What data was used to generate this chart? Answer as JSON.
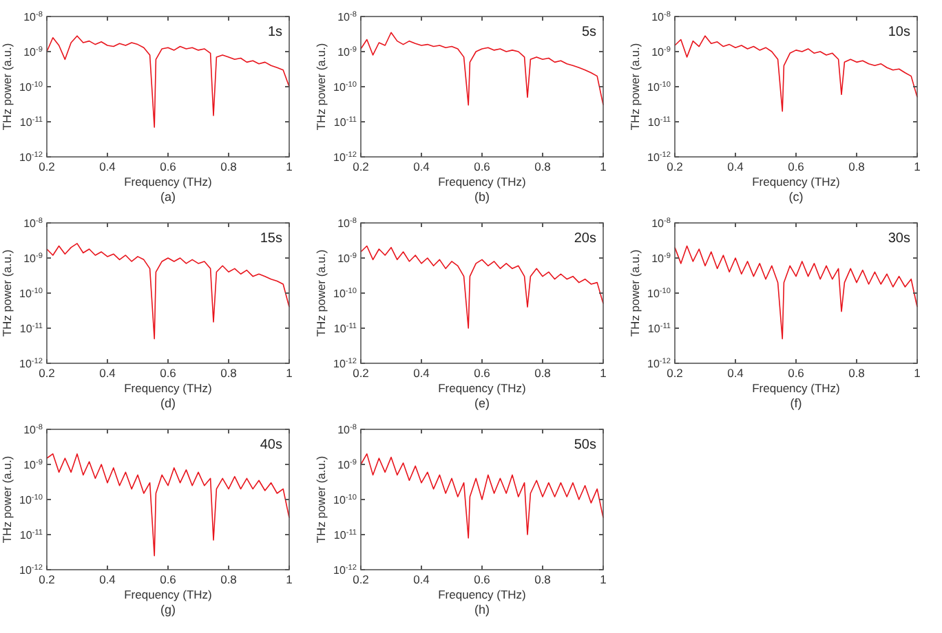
{
  "chart_data": [
    {
      "type": "line",
      "title": "(a)",
      "annotations": [
        "1s"
      ],
      "xlabel": "Frequency (THz)",
      "ylabel": "THz power (a.u.)",
      "log": "y",
      "xlim": [
        0.2,
        1
      ],
      "xticks": [
        0.2,
        0.4,
        0.6,
        0.8,
        1
      ],
      "ylim": [
        1e-12,
        1e-08
      ],
      "yticks": [
        {
          "value": 1e-12,
          "label": "10$^{-12}$"
        },
        {
          "value": 1e-11,
          "label": "10$^{-11}$"
        },
        {
          "value": 1e-10,
          "label": "10$^{-10}$"
        },
        {
          "value": 1e-09,
          "label": "10$^{-9}$"
        },
        {
          "value": 1e-08,
          "label": "10$^{-8}$"
        }
      ],
      "x": [
        0.2,
        0.22,
        0.24,
        0.26,
        0.28,
        0.3,
        0.32,
        0.34,
        0.36,
        0.38,
        0.4,
        0.42,
        0.44,
        0.46,
        0.48,
        0.5,
        0.52,
        0.54,
        0.555,
        0.56,
        0.58,
        0.6,
        0.62,
        0.64,
        0.66,
        0.68,
        0.7,
        0.72,
        0.74,
        0.75,
        0.76,
        0.78,
        0.8,
        0.82,
        0.84,
        0.86,
        0.88,
        0.9,
        0.92,
        0.94,
        0.96,
        0.98,
        1
      ],
      "series": [
        {
          "color": "#e8141c",
          "values": [
            1e-09,
            2.5e-09,
            1.5e-09,
            6e-10,
            1.8e-09,
            2.8e-09,
            1.8e-09,
            2e-09,
            1.6e-09,
            1.9e-09,
            1.5e-09,
            1.4e-09,
            1.7e-09,
            1.5e-09,
            1.8e-09,
            1.6e-09,
            1.3e-09,
            8e-10,
            7e-12,
            6e-10,
            1.2e-09,
            1.3e-09,
            1.1e-09,
            1.4e-09,
            1.2e-09,
            1.3e-09,
            1.1e-09,
            1.2e-09,
            9e-10,
            1.5e-11,
            7e-10,
            8e-10,
            7e-10,
            6e-10,
            6.5e-10,
            5e-10,
            5.5e-10,
            4.5e-10,
            5e-10,
            4e-10,
            3.5e-10,
            3e-10,
            1e-10
          ]
        }
      ]
    },
    {
      "type": "line",
      "title": "(b)",
      "annotations": [
        "5s"
      ],
      "xlabel": "Frequency (THz)",
      "ylabel": "THz power (a.u.)",
      "log": "y",
      "xlim": [
        0.2,
        1
      ],
      "xticks": [
        0.2,
        0.4,
        0.6,
        0.8,
        1
      ],
      "ylim": [
        1e-12,
        1e-08
      ],
      "yticks": [
        {
          "value": 1e-12,
          "label": "10$^{-12}$"
        },
        {
          "value": 1e-11,
          "label": "10$^{-11}$"
        },
        {
          "value": 1e-10,
          "label": "10$^{-10}$"
        },
        {
          "value": 1e-09,
          "label": "10$^{-9}$"
        },
        {
          "value": 1e-08,
          "label": "10$^{-8}$"
        }
      ],
      "x": [
        0.2,
        0.22,
        0.24,
        0.26,
        0.28,
        0.3,
        0.32,
        0.34,
        0.36,
        0.38,
        0.4,
        0.42,
        0.44,
        0.46,
        0.48,
        0.5,
        0.52,
        0.54,
        0.555,
        0.56,
        0.58,
        0.6,
        0.62,
        0.64,
        0.66,
        0.68,
        0.7,
        0.72,
        0.74,
        0.75,
        0.76,
        0.78,
        0.8,
        0.82,
        0.84,
        0.86,
        0.88,
        0.9,
        0.92,
        0.94,
        0.96,
        0.98,
        1
      ],
      "series": [
        {
          "color": "#e8141c",
          "values": [
            1.2e-09,
            2.2e-09,
            8e-10,
            1.8e-09,
            1.5e-09,
            3.5e-09,
            2e-09,
            1.6e-09,
            2e-09,
            1.7e-09,
            1.5e-09,
            1.6e-09,
            1.4e-09,
            1.5e-09,
            1.3e-09,
            1.4e-09,
            1.2e-09,
            7e-10,
            3e-11,
            5e-10,
            1e-09,
            1.2e-09,
            1.3e-09,
            1.1e-09,
            1.2e-09,
            1e-09,
            1.1e-09,
            1e-09,
            7e-10,
            5e-11,
            6e-10,
            7e-10,
            6e-10,
            6.5e-10,
            5e-10,
            5.5e-10,
            4.5e-10,
            4e-10,
            3.5e-10,
            3e-10,
            2.5e-10,
            2e-10,
            3e-11
          ]
        }
      ]
    },
    {
      "type": "line",
      "title": "(c)",
      "annotations": [
        "10s"
      ],
      "xlabel": "Frequency (THz)",
      "ylabel": "THz power (a.u.)",
      "log": "y",
      "xlim": [
        0.2,
        1
      ],
      "xticks": [
        0.2,
        0.4,
        0.6,
        0.8,
        1
      ],
      "ylim": [
        1e-12,
        1e-08
      ],
      "yticks": [
        {
          "value": 1e-12,
          "label": "10$^{-12}$"
        },
        {
          "value": 1e-11,
          "label": "10$^{-11}$"
        },
        {
          "value": 1e-10,
          "label": "10$^{-10}$"
        },
        {
          "value": 1e-09,
          "label": "10$^{-9}$"
        },
        {
          "value": 1e-08,
          "label": "10$^{-8}$"
        }
      ],
      "x": [
        0.2,
        0.22,
        0.24,
        0.26,
        0.28,
        0.3,
        0.32,
        0.34,
        0.36,
        0.38,
        0.4,
        0.42,
        0.44,
        0.46,
        0.48,
        0.5,
        0.52,
        0.54,
        0.555,
        0.56,
        0.58,
        0.6,
        0.62,
        0.64,
        0.66,
        0.68,
        0.7,
        0.72,
        0.74,
        0.75,
        0.76,
        0.78,
        0.8,
        0.82,
        0.84,
        0.86,
        0.88,
        0.9,
        0.92,
        0.94,
        0.96,
        0.98,
        1
      ],
      "series": [
        {
          "color": "#e8141c",
          "values": [
            1.5e-09,
            2.2e-09,
            7e-10,
            2e-09,
            1.4e-09,
            2.8e-09,
            1.7e-09,
            1.9e-09,
            1.4e-09,
            1.6e-09,
            1.3e-09,
            1.5e-09,
            1.2e-09,
            1.4e-09,
            1.1e-09,
            1.3e-09,
            1e-09,
            6e-10,
            2e-11,
            4e-10,
            9e-10,
            1.1e-09,
            1e-09,
            1.2e-09,
            9e-10,
            1e-09,
            8e-10,
            9e-10,
            6e-10,
            6e-11,
            5e-10,
            6e-10,
            5e-10,
            5.5e-10,
            4.5e-10,
            4e-10,
            4.5e-10,
            3.5e-10,
            3e-10,
            3.2e-10,
            2.5e-10,
            2e-10,
            5e-11
          ]
        }
      ]
    },
    {
      "type": "line",
      "title": "(d)",
      "annotations": [
        "15s"
      ],
      "xlabel": "Frequency (THz)",
      "ylabel": "THz power (a.u.)",
      "log": "y",
      "xlim": [
        0.2,
        1
      ],
      "xticks": [
        0.2,
        0.4,
        0.6,
        0.8,
        1
      ],
      "ylim": [
        1e-12,
        1e-08
      ],
      "yticks": [
        {
          "value": 1e-12,
          "label": "10$^{-12}$"
        },
        {
          "value": 1e-11,
          "label": "10$^{-11}$"
        },
        {
          "value": 1e-10,
          "label": "10$^{-10}$"
        },
        {
          "value": 1e-09,
          "label": "10$^{-9}$"
        },
        {
          "value": 1e-08,
          "label": "10$^{-8}$"
        }
      ],
      "x": [
        0.2,
        0.22,
        0.24,
        0.26,
        0.28,
        0.3,
        0.32,
        0.34,
        0.36,
        0.38,
        0.4,
        0.42,
        0.44,
        0.46,
        0.48,
        0.5,
        0.52,
        0.54,
        0.555,
        0.56,
        0.58,
        0.6,
        0.62,
        0.64,
        0.66,
        0.68,
        0.7,
        0.72,
        0.74,
        0.75,
        0.76,
        0.78,
        0.8,
        0.82,
        0.84,
        0.86,
        0.88,
        0.9,
        0.92,
        0.94,
        0.96,
        0.98,
        1
      ],
      "series": [
        {
          "color": "#e8141c",
          "values": [
            1.8e-09,
            1.2e-09,
            2.2e-09,
            1.3e-09,
            2e-09,
            2.6e-09,
            1.4e-09,
            1.8e-09,
            1.2e-09,
            1.5e-09,
            1.1e-09,
            1.3e-09,
            9e-10,
            1.2e-09,
            8e-10,
            1.1e-09,
            9e-10,
            5e-10,
            5e-12,
            4e-10,
            8e-10,
            1e-09,
            8e-10,
            1e-09,
            7e-10,
            9e-10,
            7e-10,
            8e-10,
            5e-10,
            1.5e-11,
            4e-10,
            6e-10,
            4e-10,
            5e-10,
            3.5e-10,
            4.5e-10,
            3e-10,
            3.5e-10,
            3e-10,
            2.5e-10,
            2.2e-10,
            1.8e-10,
            4e-11
          ]
        }
      ]
    },
    {
      "type": "line",
      "title": "(e)",
      "annotations": [
        "20s"
      ],
      "xlabel": "Frequency (THz)",
      "ylabel": "THz power (a.u.)",
      "log": "y",
      "xlim": [
        0.2,
        1
      ],
      "xticks": [
        0.2,
        0.4,
        0.6,
        0.8,
        1
      ],
      "ylim": [
        1e-12,
        1e-08
      ],
      "yticks": [
        {
          "value": 1e-12,
          "label": "10$^{-12}$"
        },
        {
          "value": 1e-11,
          "label": "10$^{-11}$"
        },
        {
          "value": 1e-10,
          "label": "10$^{-10}$"
        },
        {
          "value": 1e-09,
          "label": "10$^{-9}$"
        },
        {
          "value": 1e-08,
          "label": "10$^{-8}$"
        }
      ],
      "x": [
        0.2,
        0.22,
        0.24,
        0.26,
        0.28,
        0.3,
        0.32,
        0.34,
        0.36,
        0.38,
        0.4,
        0.42,
        0.44,
        0.46,
        0.48,
        0.5,
        0.52,
        0.54,
        0.555,
        0.56,
        0.58,
        0.6,
        0.62,
        0.64,
        0.66,
        0.68,
        0.7,
        0.72,
        0.74,
        0.75,
        0.76,
        0.78,
        0.8,
        0.82,
        0.84,
        0.86,
        0.88,
        0.9,
        0.92,
        0.94,
        0.96,
        0.98,
        1
      ],
      "series": [
        {
          "color": "#e8141c",
          "values": [
            1.5e-09,
            2.2e-09,
            9e-10,
            1.8e-09,
            1.2e-09,
            2e-09,
            9e-10,
            1.5e-09,
            8e-10,
            1.2e-09,
            7e-10,
            1e-09,
            6e-10,
            9e-10,
            5e-10,
            8e-10,
            6e-10,
            3e-10,
            1e-11,
            3e-10,
            7e-10,
            9e-10,
            6e-10,
            8e-10,
            5e-10,
            7e-10,
            5e-10,
            6e-10,
            3e-10,
            4e-11,
            3e-10,
            5e-10,
            3e-10,
            4e-10,
            2.5e-10,
            3.5e-10,
            2.5e-10,
            3e-10,
            2e-10,
            2.5e-10,
            1.8e-10,
            2e-10,
            5e-11
          ]
        }
      ]
    },
    {
      "type": "line",
      "title": "(f)",
      "annotations": [
        "30s"
      ],
      "xlabel": "Frequency (THz)",
      "ylabel": "THz power (a.u.)",
      "log": "y",
      "xlim": [
        0.2,
        1
      ],
      "xticks": [
        0.2,
        0.4,
        0.6,
        0.8,
        1
      ],
      "ylim": [
        1e-12,
        1e-08
      ],
      "yticks": [
        {
          "value": 1e-12,
          "label": "10$^{-12}$"
        },
        {
          "value": 1e-11,
          "label": "10$^{-11}$"
        },
        {
          "value": 1e-10,
          "label": "10$^{-10}$"
        },
        {
          "value": 1e-09,
          "label": "10$^{-9}$"
        },
        {
          "value": 1e-08,
          "label": "10$^{-8}$"
        }
      ],
      "x": [
        0.2,
        0.22,
        0.24,
        0.26,
        0.28,
        0.3,
        0.32,
        0.34,
        0.36,
        0.38,
        0.4,
        0.42,
        0.44,
        0.46,
        0.48,
        0.5,
        0.52,
        0.54,
        0.555,
        0.56,
        0.58,
        0.6,
        0.62,
        0.64,
        0.66,
        0.68,
        0.7,
        0.72,
        0.74,
        0.75,
        0.76,
        0.78,
        0.8,
        0.82,
        0.84,
        0.86,
        0.88,
        0.9,
        0.92,
        0.94,
        0.96,
        0.98,
        1
      ],
      "series": [
        {
          "color": "#e8141c",
          "values": [
            2e-09,
            7e-10,
            2.2e-09,
            8e-10,
            1.8e-09,
            6e-10,
            1.5e-09,
            5e-10,
            1.2e-09,
            4e-10,
            1e-09,
            3.5e-10,
            8e-10,
            3e-10,
            7e-10,
            2.5e-10,
            6e-10,
            2e-10,
            5e-12,
            2e-10,
            6e-10,
            3e-10,
            8e-10,
            3e-10,
            7e-10,
            2.5e-10,
            6e-10,
            2.5e-10,
            5e-10,
            3e-11,
            2e-10,
            5e-10,
            2e-10,
            4.5e-10,
            1.8e-10,
            4e-10,
            1.8e-10,
            3.5e-10,
            1.5e-10,
            3e-10,
            1.5e-10,
            2.5e-10,
            4e-11
          ]
        }
      ]
    },
    {
      "type": "line",
      "title": "(g)",
      "annotations": [
        "40s"
      ],
      "xlabel": "Frequency (THz)",
      "ylabel": "THz power (a.u.)",
      "log": "y",
      "xlim": [
        0.2,
        1
      ],
      "xticks": [
        0.2,
        0.4,
        0.6,
        0.8,
        1
      ],
      "ylim": [
        1e-12,
        1e-08
      ],
      "yticks": [
        {
          "value": 1e-12,
          "label": "10$^{-12}$"
        },
        {
          "value": 1e-11,
          "label": "10$^{-11}$"
        },
        {
          "value": 1e-10,
          "label": "10$^{-10}$"
        },
        {
          "value": 1e-09,
          "label": "10$^{-9}$"
        },
        {
          "value": 1e-08,
          "label": "10$^{-8}$"
        }
      ],
      "x": [
        0.2,
        0.22,
        0.24,
        0.26,
        0.28,
        0.3,
        0.32,
        0.34,
        0.36,
        0.38,
        0.4,
        0.42,
        0.44,
        0.46,
        0.48,
        0.5,
        0.52,
        0.54,
        0.555,
        0.56,
        0.58,
        0.6,
        0.62,
        0.64,
        0.66,
        0.68,
        0.7,
        0.72,
        0.74,
        0.75,
        0.76,
        0.78,
        0.8,
        0.82,
        0.84,
        0.86,
        0.88,
        0.9,
        0.92,
        0.94,
        0.96,
        0.98,
        1
      ],
      "series": [
        {
          "color": "#e8141c",
          "values": [
            1.5e-09,
            2e-09,
            6e-10,
            1.5e-09,
            6e-10,
            2e-09,
            5e-10,
            1.2e-09,
            4e-10,
            1e-09,
            3e-10,
            8e-10,
            2.5e-10,
            6e-10,
            2e-10,
            5e-10,
            1.5e-10,
            3e-10,
            2.5e-12,
            1.5e-10,
            5e-10,
            2.5e-10,
            8e-10,
            3e-10,
            7e-10,
            2.5e-10,
            6e-10,
            2.5e-10,
            4e-10,
            7e-12,
            2e-10,
            4e-10,
            2e-10,
            4.5e-10,
            2e-10,
            4e-10,
            2e-10,
            3.5e-10,
            1.8e-10,
            3e-10,
            1.5e-10,
            2e-10,
            3e-11
          ]
        }
      ]
    },
    {
      "type": "line",
      "title": "(h)",
      "annotations": [
        "50s"
      ],
      "xlabel": "Frequency (THz)",
      "ylabel": "THz power (a.u.)",
      "log": "y",
      "xlim": [
        0.2,
        1
      ],
      "xticks": [
        0.2,
        0.4,
        0.6,
        0.8,
        1
      ],
      "ylim": [
        1e-12,
        1e-08
      ],
      "yticks": [
        {
          "value": 1e-12,
          "label": "10$^{-12}$"
        },
        {
          "value": 1e-11,
          "label": "10$^{-11}$"
        },
        {
          "value": 1e-10,
          "label": "10$^{-10}$"
        },
        {
          "value": 1e-09,
          "label": "10$^{-9}$"
        },
        {
          "value": 1e-08,
          "label": "10$^{-8}$"
        }
      ],
      "x": [
        0.2,
        0.22,
        0.24,
        0.26,
        0.28,
        0.3,
        0.32,
        0.34,
        0.36,
        0.38,
        0.4,
        0.42,
        0.44,
        0.46,
        0.48,
        0.5,
        0.52,
        0.54,
        0.555,
        0.56,
        0.58,
        0.6,
        0.62,
        0.64,
        0.66,
        0.68,
        0.7,
        0.72,
        0.74,
        0.75,
        0.76,
        0.78,
        0.8,
        0.82,
        0.84,
        0.86,
        0.88,
        0.9,
        0.92,
        0.94,
        0.96,
        0.98,
        1
      ],
      "series": [
        {
          "color": "#e8141c",
          "values": [
            1e-09,
            2e-09,
            5e-10,
            1.5e-09,
            6e-10,
            1.6e-09,
            5e-10,
            1.1e-09,
            3.5e-10,
            9e-10,
            3e-10,
            6e-10,
            2e-10,
            5e-10,
            1.5e-10,
            4e-10,
            1.2e-10,
            3e-10,
            8e-12,
            1.2e-10,
            4e-10,
            1e-10,
            5e-10,
            1.5e-10,
            4e-10,
            1.5e-10,
            5e-10,
            1.2e-10,
            3e-10,
            1e-11,
            1.5e-10,
            3.5e-10,
            1.2e-10,
            3e-10,
            1.2e-10,
            3e-10,
            1.2e-10,
            3e-10,
            1e-10,
            2.5e-10,
            8e-11,
            2e-10,
            3e-11
          ]
        }
      ]
    }
  ]
}
